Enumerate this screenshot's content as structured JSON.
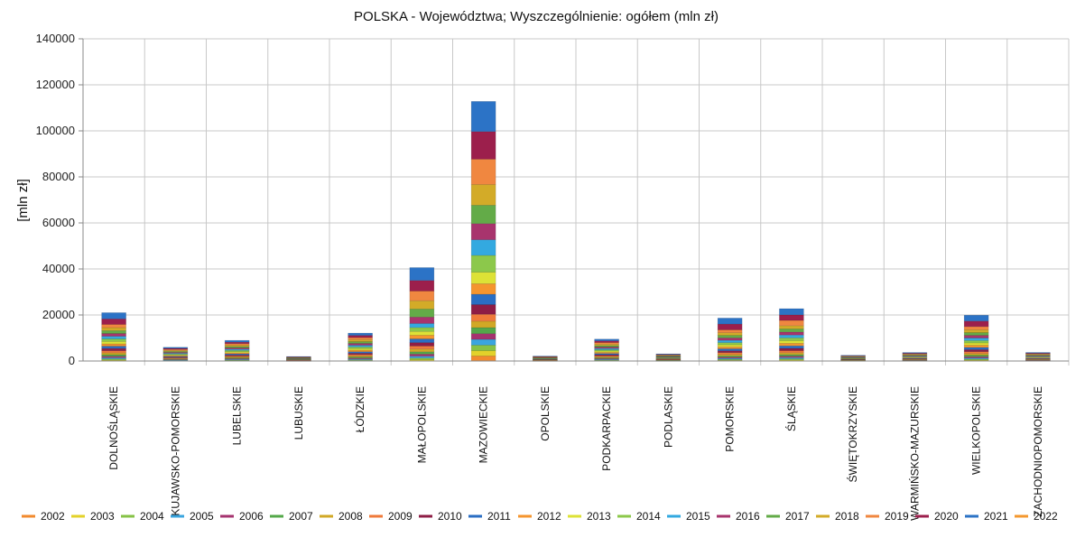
{
  "chart_data": {
    "type": "bar",
    "stacked": true,
    "title": "POLSKA - Województwa; Wyszczególnienie: ogółem (mln zł)",
    "xlabel": "",
    "ylabel": "[mln zł]",
    "ylim": [
      0,
      140000
    ],
    "yticks": [
      0,
      20000,
      40000,
      60000,
      80000,
      100000,
      120000,
      140000
    ],
    "grid": true,
    "legend_position": "bottom",
    "categories": [
      "DOLNOŚLĄSKIE",
      "KUJAWSKO-POMORSKIE",
      "LUBELSKIE",
      "LUBUSKIE",
      "ŁÓDZKIE",
      "MAŁOPOLSKIE",
      "MAZOWIECKIE",
      "OPOLSKIE",
      "PODKARPACKIE",
      "PODLASKIE",
      "POMORSKIE",
      "ŚLĄSKIE",
      "ŚWIĘTOKRZYSKIE",
      "WARMIŃSKO-MAZURSKIE",
      "WIELKOPOLSKIE",
      "ZACHODNIOPOMORSKIE"
    ],
    "series": [
      {
        "name": "2002",
        "color": "#f28a2e",
        "values": [
          0,
          0,
          0,
          0,
          0,
          0,
          2200,
          0,
          0,
          0,
          0,
          0,
          0,
          0,
          0,
          0
        ]
      },
      {
        "name": "2003",
        "color": "#e3d22a",
        "values": [
          400,
          130,
          200,
          30,
          250,
          600,
          2300,
          40,
          220,
          60,
          350,
          450,
          50,
          70,
          400,
          80
        ]
      },
      {
        "name": "2004",
        "color": "#86c246",
        "values": [
          500,
          150,
          250,
          40,
          300,
          700,
          2400,
          50,
          250,
          70,
          400,
          500,
          60,
          80,
          450,
          90
        ]
      },
      {
        "name": "2005",
        "color": "#3aa5df",
        "values": [
          550,
          170,
          280,
          50,
          350,
          800,
          2500,
          60,
          280,
          80,
          450,
          550,
          70,
          100,
          500,
          100
        ]
      },
      {
        "name": "2006",
        "color": "#a5336f",
        "values": [
          600,
          200,
          300,
          60,
          400,
          900,
          2500,
          70,
          300,
          100,
          500,
          600,
          80,
          120,
          550,
          120
        ]
      },
      {
        "name": "2007",
        "color": "#54a84a",
        "values": [
          700,
          220,
          350,
          70,
          450,
          1000,
          2600,
          80,
          350,
          110,
          550,
          700,
          90,
          140,
          650,
          140
        ]
      },
      {
        "name": "2008",
        "color": "#d1a826",
        "values": [
          800,
          250,
          380,
          80,
          500,
          1200,
          2800,
          90,
          400,
          130,
          650,
          800,
          100,
          150,
          700,
          150
        ]
      },
      {
        "name": "2009",
        "color": "#ef7a3a",
        "values": [
          900,
          280,
          420,
          90,
          550,
          1300,
          3000,
          100,
          450,
          150,
          750,
          900,
          110,
          170,
          800,
          170
        ]
      },
      {
        "name": "2010",
        "color": "#8e1d45",
        "values": [
          1000,
          300,
          450,
          100,
          600,
          1500,
          4200,
          110,
          500,
          160,
          800,
          1000,
          120,
          190,
          900,
          190
        ]
      },
      {
        "name": "2011",
        "color": "#2a6ec3",
        "values": [
          1000,
          320,
          480,
          110,
          650,
          1600,
          4500,
          120,
          520,
          170,
          850,
          1100,
          130,
          200,
          950,
          200
        ]
      },
      {
        "name": "2012",
        "color": "#f5952e",
        "values": [
          1000,
          320,
          480,
          110,
          650,
          1600,
          4600,
          120,
          520,
          170,
          850,
          1100,
          130,
          200,
          950,
          200
        ]
      },
      {
        "name": "2013",
        "color": "#dde236",
        "values": [
          1050,
          330,
          500,
          110,
          680,
          1650,
          5000,
          120,
          540,
          180,
          900,
          1150,
          140,
          210,
          1000,
          210
        ]
      },
      {
        "name": "2014",
        "color": "#8cc84b",
        "values": [
          1100,
          350,
          520,
          120,
          720,
          1700,
          7300,
          130,
          560,
          190,
          950,
          1200,
          150,
          220,
          1050,
          220
        ]
      },
      {
        "name": "2015",
        "color": "#33a9e0",
        "values": [
          1150,
          360,
          540,
          120,
          750,
          1750,
          6800,
          130,
          580,
          190,
          1000,
          1250,
          150,
          230,
          1100,
          230
        ]
      },
      {
        "name": "2016",
        "color": "#a8346d",
        "values": [
          1200,
          380,
          560,
          130,
          780,
          2800,
          7000,
          140,
          600,
          200,
          1050,
          1300,
          160,
          240,
          1150,
          240
        ]
      },
      {
        "name": "2017",
        "color": "#63ab48",
        "values": [
          1250,
          400,
          580,
          130,
          800,
          3500,
          8000,
          140,
          620,
          210,
          1100,
          1350,
          170,
          250,
          1200,
          250
        ]
      },
      {
        "name": "2018",
        "color": "#d3ab28",
        "values": [
          1300,
          420,
          600,
          140,
          850,
          3600,
          9000,
          150,
          650,
          220,
          1150,
          1400,
          180,
          260,
          1250,
          260
        ]
      },
      {
        "name": "2019",
        "color": "#f08740",
        "values": [
          1400,
          450,
          650,
          150,
          900,
          4200,
          11000,
          160,
          700,
          240,
          1250,
          2300,
          190,
          280,
          1350,
          280
        ]
      },
      {
        "name": "2020",
        "color": "#9c1f4c",
        "values": [
          2400,
          460,
          660,
          150,
          950,
          4600,
          12000,
          160,
          710,
          240,
          2500,
          2400,
          200,
          290,
          2400,
          290
        ]
      },
      {
        "name": "2021",
        "color": "#2c73c6",
        "values": [
          2700,
          480,
          760,
          160,
          1000,
          5600,
          13100,
          170,
          760,
          250,
          2600,
          2700,
          210,
          300,
          2550,
          300
        ]
      },
      {
        "name": "2022",
        "color": "#f4982f",
        "values": [
          0,
          0,
          0,
          0,
          0,
          0,
          0,
          0,
          0,
          0,
          0,
          0,
          0,
          0,
          0,
          0
        ]
      }
    ]
  }
}
